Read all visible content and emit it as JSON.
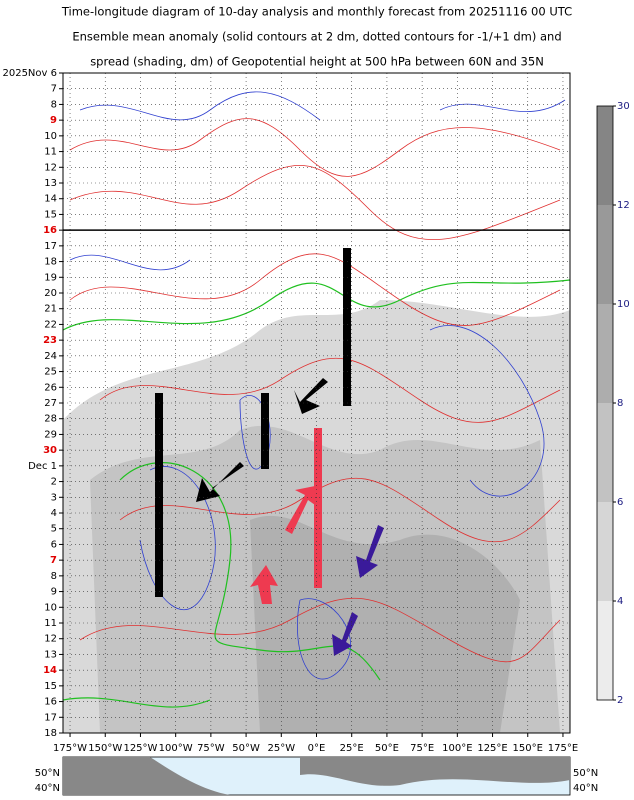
{
  "chart_data": {
    "type": "contour",
    "title_lines": [
      "Time-longitude diagram of 10-day analysis and monthly forecast from 20251116 00 UTC",
      "Ensemble mean anomaly (solid contours at 2 dm, dotted contours for -1/+1 dm) and",
      "spread (shading, dm) of Geopotential height at 500 hPa between 60N and 35N"
    ],
    "xlim": [
      -180,
      180
    ],
    "xticks": [
      {
        "value": -175,
        "label": "175°W"
      },
      {
        "value": -150,
        "label": "150°W"
      },
      {
        "value": -125,
        "label": "125°W"
      },
      {
        "value": -100,
        "label": "100°W"
      },
      {
        "value": -75,
        "label": "75°W"
      },
      {
        "value": -50,
        "label": "50°W"
      },
      {
        "value": -25,
        "label": "25°W"
      },
      {
        "value": 0,
        "label": "0°E"
      },
      {
        "value": 25,
        "label": "25°E"
      },
      {
        "value": 50,
        "label": "50°E"
      },
      {
        "value": 75,
        "label": "75°E"
      },
      {
        "value": 100,
        "label": "100°E"
      },
      {
        "value": 125,
        "label": "125°E"
      },
      {
        "value": 150,
        "label": "150°E"
      },
      {
        "value": 175,
        "label": "175°E"
      }
    ],
    "ylim": [
      "2025-11-06",
      "2025-12-18"
    ],
    "yticks": [
      {
        "value": "2025-11-06",
        "label": "2025Nov 6"
      },
      {
        "value": "2025-11-07",
        "label": "7"
      },
      {
        "value": "2025-11-08",
        "label": "8"
      },
      {
        "value": "2025-11-09",
        "label": "9",
        "color": "#e00000"
      },
      {
        "value": "2025-11-10",
        "label": "10"
      },
      {
        "value": "2025-11-11",
        "label": "11"
      },
      {
        "value": "2025-11-12",
        "label": "12"
      },
      {
        "value": "2025-11-13",
        "label": "13"
      },
      {
        "value": "2025-11-14",
        "label": "14"
      },
      {
        "value": "2025-11-15",
        "label": "15"
      },
      {
        "value": "2025-11-16",
        "label": "16",
        "color": "#e00000"
      },
      {
        "value": "2025-11-17",
        "label": "17"
      },
      {
        "value": "2025-11-18",
        "label": "18"
      },
      {
        "value": "2025-11-19",
        "label": "19"
      },
      {
        "value": "2025-11-20",
        "label": "20"
      },
      {
        "value": "2025-11-21",
        "label": "21"
      },
      {
        "value": "2025-11-22",
        "label": "22"
      },
      {
        "value": "2025-11-23",
        "label": "23",
        "color": "#e00000"
      },
      {
        "value": "2025-11-24",
        "label": "24"
      },
      {
        "value": "2025-11-25",
        "label": "25"
      },
      {
        "value": "2025-11-26",
        "label": "26"
      },
      {
        "value": "2025-11-27",
        "label": "27"
      },
      {
        "value": "2025-11-28",
        "label": "28"
      },
      {
        "value": "2025-11-29",
        "label": "29"
      },
      {
        "value": "2025-11-30",
        "label": "30",
        "color": "#e00000"
      },
      {
        "value": "2025-12-01",
        "label": "Dec 1"
      },
      {
        "value": "2025-12-02",
        "label": "2"
      },
      {
        "value": "2025-12-03",
        "label": "3"
      },
      {
        "value": "2025-12-04",
        "label": "4"
      },
      {
        "value": "2025-12-05",
        "label": "5"
      },
      {
        "value": "2025-12-06",
        "label": "6"
      },
      {
        "value": "2025-12-07",
        "label": "7",
        "color": "#e00000"
      },
      {
        "value": "2025-12-08",
        "label": "8"
      },
      {
        "value": "2025-12-09",
        "label": "9"
      },
      {
        "value": "2025-12-10",
        "label": "10"
      },
      {
        "value": "2025-12-11",
        "label": "11"
      },
      {
        "value": "2025-12-12",
        "label": "12"
      },
      {
        "value": "2025-12-13",
        "label": "13"
      },
      {
        "value": "2025-12-14",
        "label": "14",
        "color": "#e00000"
      },
      {
        "value": "2025-12-15",
        "label": "15"
      },
      {
        "value": "2025-12-16",
        "label": "16"
      },
      {
        "value": "2025-12-17",
        "label": "17"
      },
      {
        "value": "2025-12-18",
        "label": "18"
      }
    ],
    "analysis_end": "2025-11-16",
    "grid": true,
    "colorbar": {
      "levels": [
        2,
        4,
        6,
        8,
        10,
        12,
        30
      ],
      "colors": [
        "#ececec",
        "#d6d6d6",
        "#c2c2c2",
        "#adadad",
        "#999999",
        "#858585"
      ]
    },
    "map_lat_labels": [
      "50°N",
      "40°N"
    ]
  }
}
